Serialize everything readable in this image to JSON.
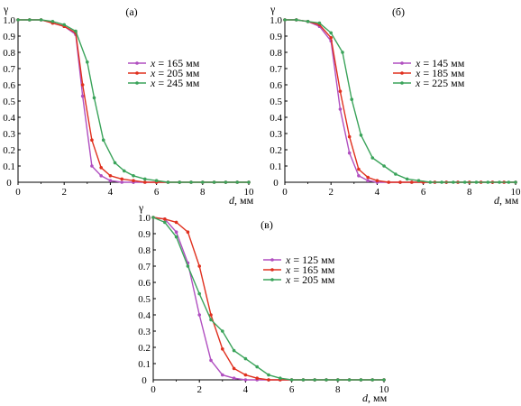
{
  "chart_data": [
    {
      "type": "line",
      "label": "(а)",
      "ylabel": "γ",
      "xlabel_var": "d",
      "xlabel_unit": ", мм",
      "xlim": [
        0,
        10
      ],
      "ylim": [
        0,
        1.0
      ],
      "xticks": [
        0,
        2,
        4,
        6,
        8,
        10
      ],
      "yticks": [
        0.1,
        0.2,
        0.3,
        0.4,
        0.5,
        0.6,
        0.7,
        0.8,
        0.9,
        1.0
      ],
      "yticklabels": [
        "0.1",
        "0.2",
        "0.3",
        "0.4",
        "0.5",
        "0.6",
        "0.7",
        "0.8",
        "0.9",
        "1.0"
      ],
      "legend_position": "right",
      "series": [
        {
          "name": "165 мм",
          "color": "#b04fc0",
          "x": [
            0,
            0.5,
            1,
            1.5,
            2,
            2.5,
            2.8,
            3.2,
            3.6,
            4,
            4.5,
            5,
            5.5,
            6,
            6.5,
            7,
            7.5,
            8,
            8.5,
            9,
            9.5,
            10
          ],
          "y": [
            1.0,
            1.0,
            1.0,
            0.98,
            0.96,
            0.91,
            0.53,
            0.1,
            0.04,
            0.01,
            0.0,
            0.0,
            0.0,
            0.0,
            0.0,
            0.0,
            0.0,
            0.0,
            0.0,
            0.0,
            0.0,
            0.0
          ]
        },
        {
          "name": "205 мм",
          "color": "#e0301e",
          "x": [
            0,
            0.5,
            1,
            1.5,
            2,
            2.5,
            2.8,
            3.2,
            3.6,
            4,
            4.5,
            5,
            5.5,
            6,
            6.5,
            7,
            7.5,
            8,
            8.5,
            9,
            9.5,
            10
          ],
          "y": [
            1.0,
            1.0,
            1.0,
            0.98,
            0.96,
            0.92,
            0.6,
            0.26,
            0.09,
            0.04,
            0.02,
            0.01,
            0.0,
            0.0,
            0.0,
            0.0,
            0.0,
            0.0,
            0.0,
            0.0,
            0.0,
            0.0
          ]
        },
        {
          "name": "245 мм",
          "color": "#3aa35a",
          "x": [
            0,
            0.5,
            1,
            1.5,
            2,
            2.5,
            3,
            3.3,
            3.7,
            4.2,
            4.6,
            5,
            5.5,
            6,
            6.5,
            7,
            7.5,
            8,
            8.5,
            9,
            9.5,
            10
          ],
          "y": [
            1.0,
            1.0,
            1.0,
            0.99,
            0.97,
            0.93,
            0.74,
            0.52,
            0.26,
            0.12,
            0.07,
            0.04,
            0.02,
            0.01,
            0.0,
            0.0,
            0.0,
            0.0,
            0.0,
            0.0,
            0.0,
            0.0
          ]
        }
      ]
    },
    {
      "type": "line",
      "label": "(б)",
      "ylabel": "γ",
      "xlabel_var": "d",
      "xlabel_unit": ", мм",
      "xlim": [
        0,
        10
      ],
      "ylim": [
        0,
        1.0
      ],
      "xticks": [
        0,
        2,
        4,
        6,
        8,
        10
      ],
      "yticks": [
        0.1,
        0.2,
        0.3,
        0.4,
        0.5,
        0.6,
        0.7,
        0.8,
        0.9,
        1.0
      ],
      "yticklabels": [
        "0.1",
        "0.2",
        "0.3",
        "0.4",
        "0.5",
        "0.6",
        "0.7",
        "0.8",
        "0.9",
        "1.0"
      ],
      "legend_position": "right",
      "series": [
        {
          "name": "145 мм",
          "color": "#b04fc0",
          "x": [
            0,
            0.5,
            1,
            1.5,
            2,
            2.4,
            2.8,
            3.2,
            3.6,
            4,
            4.5,
            5,
            5.5,
            6,
            6.5,
            7,
            7.5,
            8,
            8.5,
            9,
            9.5,
            10
          ],
          "y": [
            1.0,
            1.0,
            0.99,
            0.96,
            0.87,
            0.45,
            0.18,
            0.04,
            0.01,
            0.0,
            0.0,
            0.0,
            0.0,
            0.0,
            0.0,
            0.0,
            0.0,
            0.0,
            0.0,
            0.0,
            0.0,
            0.0
          ]
        },
        {
          "name": "185 мм",
          "color": "#e0301e",
          "x": [
            0,
            0.5,
            1,
            1.5,
            2,
            2.4,
            2.8,
            3.2,
            3.6,
            4,
            4.5,
            5,
            5.5,
            6,
            6.5,
            7,
            7.5,
            8,
            8.5,
            9,
            9.5,
            10
          ],
          "y": [
            1.0,
            1.0,
            0.99,
            0.97,
            0.89,
            0.56,
            0.28,
            0.08,
            0.03,
            0.01,
            0.0,
            0.0,
            0.0,
            0.0,
            0.0,
            0.0,
            0.0,
            0.0,
            0.0,
            0.0,
            0.0,
            0.0
          ]
        },
        {
          "name": "225 мм",
          "color": "#3aa35a",
          "x": [
            0,
            0.5,
            1,
            1.5,
            2,
            2.5,
            2.9,
            3.3,
            3.8,
            4.3,
            4.8,
            5.3,
            5.8,
            6.3,
            6.8,
            7.3,
            7.8,
            8.3,
            8.8,
            9.3,
            9.7,
            10
          ],
          "y": [
            1.0,
            1.0,
            0.99,
            0.98,
            0.92,
            0.8,
            0.51,
            0.29,
            0.15,
            0.1,
            0.05,
            0.02,
            0.01,
            0.0,
            0.0,
            0.0,
            0.0,
            0.0,
            0.0,
            0.0,
            0.0,
            0.0
          ]
        }
      ]
    },
    {
      "type": "line",
      "label": "(в)",
      "ylabel": "γ",
      "xlabel_var": "d",
      "xlabel_unit": ", мм",
      "xlim": [
        0,
        10
      ],
      "ylim": [
        0,
        1.0
      ],
      "xticks": [
        0,
        2,
        4,
        6,
        8,
        10
      ],
      "yticks": [
        0.1,
        0.2,
        0.3,
        0.4,
        0.5,
        0.6,
        0.7,
        0.8,
        0.9,
        1.0
      ],
      "yticklabels": [
        "0.1",
        "0.2",
        "0.3",
        "0.4",
        "0.5",
        "0.6",
        "0.7",
        "0.8",
        "0.9",
        "1.0"
      ],
      "legend_position": "right",
      "series": [
        {
          "name": "125 мм",
          "color": "#b04fc0",
          "x": [
            0,
            0.5,
            1,
            1.5,
            2,
            2.5,
            3,
            3.5,
            4,
            4.5,
            5,
            5.5,
            6,
            6.5,
            7,
            7.5,
            8,
            8.5,
            9,
            9.5,
            10
          ],
          "y": [
            1.0,
            0.99,
            0.91,
            0.72,
            0.4,
            0.12,
            0.03,
            0.01,
            0.0,
            0.0,
            0.0,
            0.0,
            0.0,
            0.0,
            0.0,
            0.0,
            0.0,
            0.0,
            0.0,
            0.0,
            0.0
          ]
        },
        {
          "name": "165 мм",
          "color": "#e0301e",
          "x": [
            0,
            0.5,
            1,
            1.5,
            2,
            2.5,
            3,
            3.5,
            4,
            4.5,
            5,
            5.5,
            6,
            6.5,
            7,
            7.5,
            8,
            8.5,
            9,
            9.5,
            10
          ],
          "y": [
            1.0,
            0.99,
            0.97,
            0.91,
            0.7,
            0.4,
            0.19,
            0.07,
            0.03,
            0.01,
            0.0,
            0.0,
            0.0,
            0.0,
            0.0,
            0.0,
            0.0,
            0.0,
            0.0,
            0.0,
            0.0
          ]
        },
        {
          "name": "205 мм",
          "color": "#3aa35a",
          "x": [
            0,
            0.5,
            1,
            1.5,
            2,
            2.5,
            3,
            3.5,
            4,
            4.5,
            5,
            5.5,
            6,
            6.5,
            7,
            7.5,
            8,
            8.5,
            9,
            9.5,
            10
          ],
          "y": [
            1.0,
            0.97,
            0.88,
            0.7,
            0.53,
            0.37,
            0.3,
            0.18,
            0.13,
            0.08,
            0.03,
            0.01,
            0.0,
            0.0,
            0.0,
            0.0,
            0.0,
            0.0,
            0.0,
            0.0,
            0.0
          ]
        }
      ]
    }
  ]
}
